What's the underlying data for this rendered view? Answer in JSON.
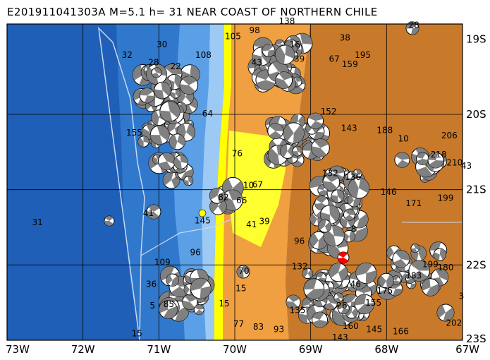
{
  "title": "E201911041303A  M=5.1  h= 31  NEAR COAST OF NORTHERN CHILE",
  "lon_labels": [
    "73W",
    "72W",
    "71W",
    "70W",
    "69W",
    "68W",
    "67W"
  ],
  "lat_labels": [
    "19S",
    "20S",
    "21S",
    "22S",
    "23S"
  ],
  "colors": {
    "deep_ocean": "#1f5fb8",
    "mid_ocean": "#3a86d6",
    "shelf": "#7fb8ee",
    "coast_yellow": "#ffff00",
    "lowland": "#f0a040",
    "highland": "#c87a2a",
    "event": "#ff0000",
    "marker": "#ffff00"
  },
  "depth_labels": [
    {
      "t": "30",
      "lon": -71.03,
      "lat": -19.11
    },
    {
      "t": "32",
      "lon": -71.49,
      "lat": -19.25
    },
    {
      "t": "28",
      "lon": -71.14,
      "lat": -19.35
    },
    {
      "t": "22",
      "lon": -70.85,
      "lat": -19.4
    },
    {
      "t": "108",
      "lon": -70.52,
      "lat": -19.25
    },
    {
      "t": "105",
      "lon": -70.13,
      "lat": -19.0
    },
    {
      "t": "98",
      "lon": -69.81,
      "lat": -18.92
    },
    {
      "t": "43",
      "lon": -69.78,
      "lat": -19.35
    },
    {
      "t": "138",
      "lon": -69.42,
      "lat": -18.8
    },
    {
      "t": "16",
      "lon": -69.28,
      "lat": -19.11
    },
    {
      "t": "39",
      "lon": -69.22,
      "lat": -19.3
    },
    {
      "t": "38",
      "lon": -68.62,
      "lat": -19.02
    },
    {
      "t": "67",
      "lon": -68.76,
      "lat": -19.3
    },
    {
      "t": "195",
      "lon": -68.42,
      "lat": -19.25
    },
    {
      "t": "159",
      "lon": -68.59,
      "lat": -19.37
    },
    {
      "t": "28",
      "lon": -67.71,
      "lat": -18.85
    },
    {
      "t": "64",
      "lon": -70.43,
      "lat": -20.03
    },
    {
      "t": "155",
      "lon": -71.43,
      "lat": -20.28
    },
    {
      "t": "152",
      "lon": -68.87,
      "lat": -20.0
    },
    {
      "t": "143",
      "lon": -68.6,
      "lat": -20.22
    },
    {
      "t": "188",
      "lon": -68.13,
      "lat": -20.25
    },
    {
      "t": "10",
      "lon": -67.85,
      "lat": -20.36
    },
    {
      "t": "206",
      "lon": -67.28,
      "lat": -20.32
    },
    {
      "t": "76",
      "lon": -70.04,
      "lat": -20.56
    },
    {
      "t": "218",
      "lon": -67.42,
      "lat": -20.57
    },
    {
      "t": "210",
      "lon": -67.21,
      "lat": -20.68
    },
    {
      "t": "43",
      "lon": -67.02,
      "lat": -20.72
    },
    {
      "t": "132",
      "lon": -68.85,
      "lat": -20.82
    },
    {
      "t": "136",
      "lon": -68.55,
      "lat": -20.87
    },
    {
      "t": "10",
      "lon": -69.89,
      "lat": -20.98
    },
    {
      "t": "67",
      "lon": -69.77,
      "lat": -20.97
    },
    {
      "t": "146",
      "lon": -68.08,
      "lat": -21.07
    },
    {
      "t": "171",
      "lon": -67.75,
      "lat": -21.22
    },
    {
      "t": "199",
      "lon": -67.33,
      "lat": -21.15
    },
    {
      "t": "82",
      "lon": -70.22,
      "lat": -21.14
    },
    {
      "t": "66",
      "lon": -69.98,
      "lat": -21.18
    },
    {
      "t": "41",
      "lon": -71.21,
      "lat": -21.35
    },
    {
      "t": "145",
      "lon": -70.53,
      "lat": -21.45
    },
    {
      "t": "39",
      "lon": -69.68,
      "lat": -21.46
    },
    {
      "t": "41",
      "lon": -69.85,
      "lat": -21.5
    },
    {
      "t": "31",
      "lon": -72.67,
      "lat": -21.47
    },
    {
      "t": "96",
      "lon": -70.59,
      "lat": -21.87
    },
    {
      "t": "96",
      "lon": -69.22,
      "lat": -21.72
    },
    {
      "t": "8",
      "lon": -68.47,
      "lat": -21.56
    },
    {
      "t": "109",
      "lon": -71.06,
      "lat": -22.0
    },
    {
      "t": "132",
      "lon": -69.25,
      "lat": -22.06
    },
    {
      "t": "70",
      "lon": -69.95,
      "lat": -22.12
    },
    {
      "t": "199",
      "lon": -67.53,
      "lat": -22.03
    },
    {
      "t": "180",
      "lon": -67.33,
      "lat": -22.07
    },
    {
      "t": "183",
      "lon": -67.75,
      "lat": -22.18
    },
    {
      "t": "36",
      "lon": -71.17,
      "lat": -22.29
    },
    {
      "t": "15",
      "lon": -69.99,
      "lat": -22.35
    },
    {
      "t": "46",
      "lon": -68.48,
      "lat": -22.29
    },
    {
      "t": "175",
      "lon": -68.13,
      "lat": -22.38
    },
    {
      "t": "85",
      "lon": -70.94,
      "lat": -22.56
    },
    {
      "t": "5",
      "lon": -71.12,
      "lat": -22.58
    },
    {
      "t": "15",
      "lon": -70.21,
      "lat": -22.55
    },
    {
      "t": "155",
      "lon": -68.28,
      "lat": -22.54
    },
    {
      "t": "135",
      "lon": -69.28,
      "lat": -22.64
    },
    {
      "t": "26",
      "lon": -68.66,
      "lat": -22.58
    },
    {
      "t": "202",
      "lon": -67.22,
      "lat": -22.81
    },
    {
      "t": "77",
      "lon": -70.02,
      "lat": -22.82
    },
    {
      "t": "83",
      "lon": -69.76,
      "lat": -22.86
    },
    {
      "t": "93",
      "lon": -69.49,
      "lat": -22.89
    },
    {
      "t": "160",
      "lon": -68.58,
      "lat": -22.85
    },
    {
      "t": "145",
      "lon": -68.27,
      "lat": -22.89
    },
    {
      "t": "166",
      "lon": -67.92,
      "lat": -22.92
    },
    {
      "t": "15",
      "lon": -71.36,
      "lat": -22.95
    },
    {
      "t": "3",
      "lon": -67.05,
      "lat": -22.45
    },
    {
      "t": "143",
      "lon": -68.72,
      "lat": -23.0
    }
  ]
}
